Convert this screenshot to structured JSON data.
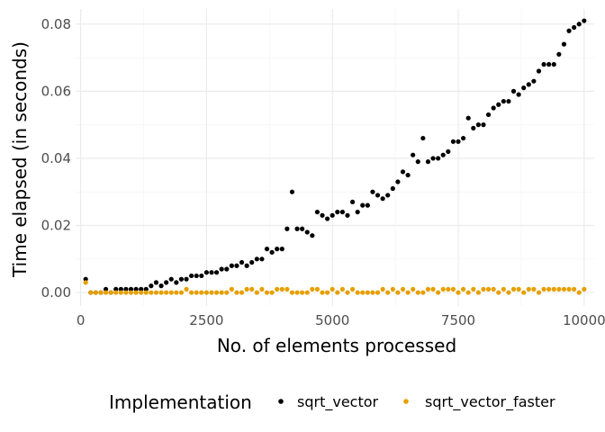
{
  "chart_data": {
    "type": "scatter",
    "title": "",
    "xlabel": "No. of elements processed",
    "ylabel": "Time elapsed (in seconds)",
    "xlim": [
      -100,
      10200
    ],
    "ylim": [
      -0.004,
      0.0845
    ],
    "x_ticks": [
      0,
      2500,
      5000,
      7500,
      10000
    ],
    "x_tick_labels": [
      "0",
      "2500",
      "5000",
      "7500",
      "10000"
    ],
    "y_ticks": [
      0.0,
      0.02,
      0.04,
      0.06,
      0.08
    ],
    "y_tick_labels": [
      "0.00",
      "0.02",
      "0.04",
      "0.06",
      "0.08"
    ],
    "grid": true,
    "legend": {
      "title": "Implementation",
      "placement": "bottom"
    },
    "series": [
      {
        "name": "sqrt_vector",
        "color": "#000000",
        "x": [
          100,
          200,
          300,
          400,
          500,
          600,
          700,
          800,
          900,
          1000,
          1100,
          1200,
          1300,
          1400,
          1500,
          1600,
          1700,
          1800,
          1900,
          2000,
          2100,
          2200,
          2300,
          2400,
          2500,
          2600,
          2700,
          2800,
          2900,
          3000,
          3100,
          3200,
          3300,
          3400,
          3500,
          3600,
          3700,
          3800,
          3900,
          4000,
          4100,
          4200,
          4300,
          4400,
          4500,
          4600,
          4700,
          4800,
          4900,
          5000,
          5100,
          5200,
          5300,
          5400,
          5500,
          5600,
          5700,
          5800,
          5900,
          6000,
          6100,
          6200,
          6300,
          6400,
          6500,
          6600,
          6700,
          6800,
          6900,
          7000,
          7100,
          7200,
          7300,
          7400,
          7500,
          7600,
          7700,
          7800,
          7900,
          8000,
          8100,
          8200,
          8300,
          8400,
          8500,
          8600,
          8700,
          8800,
          8900,
          9000,
          9100,
          9200,
          9300,
          9400,
          9500,
          9600,
          9700,
          9800,
          9900,
          10000
        ],
        "y": [
          0.004,
          0.0,
          0.0,
          0.0,
          0.001,
          0.0,
          0.001,
          0.001,
          0.001,
          0.001,
          0.001,
          0.001,
          0.001,
          0.002,
          0.003,
          0.002,
          0.003,
          0.004,
          0.003,
          0.004,
          0.004,
          0.005,
          0.005,
          0.005,
          0.006,
          0.006,
          0.006,
          0.007,
          0.007,
          0.008,
          0.008,
          0.009,
          0.008,
          0.009,
          0.01,
          0.01,
          0.013,
          0.012,
          0.013,
          0.013,
          0.019,
          0.03,
          0.019,
          0.019,
          0.018,
          0.017,
          0.024,
          0.023,
          0.022,
          0.023,
          0.024,
          0.024,
          0.023,
          0.027,
          0.024,
          0.026,
          0.026,
          0.03,
          0.029,
          0.028,
          0.029,
          0.031,
          0.033,
          0.036,
          0.035,
          0.041,
          0.039,
          0.046,
          0.039,
          0.04,
          0.04,
          0.041,
          0.042,
          0.045,
          0.045,
          0.046,
          0.052,
          0.049,
          0.05,
          0.05,
          0.053,
          0.055,
          0.056,
          0.057,
          0.057,
          0.06,
          0.059,
          0.061,
          0.062,
          0.063,
          0.066,
          0.068,
          0.068,
          0.068,
          0.071,
          0.074,
          0.078,
          0.079,
          0.08,
          0.081
        ]
      },
      {
        "name": "sqrt_vector_faster",
        "color": "#E69F00",
        "x": [
          100,
          200,
          300,
          400,
          500,
          600,
          700,
          800,
          900,
          1000,
          1100,
          1200,
          1300,
          1400,
          1500,
          1600,
          1700,
          1800,
          1900,
          2000,
          2100,
          2200,
          2300,
          2400,
          2500,
          2600,
          2700,
          2800,
          2900,
          3000,
          3100,
          3200,
          3300,
          3400,
          3500,
          3600,
          3700,
          3800,
          3900,
          4000,
          4100,
          4200,
          4300,
          4400,
          4500,
          4600,
          4700,
          4800,
          4900,
          5000,
          5100,
          5200,
          5300,
          5400,
          5500,
          5600,
          5700,
          5800,
          5900,
          6000,
          6100,
          6200,
          6300,
          6400,
          6500,
          6600,
          6700,
          6800,
          6900,
          7000,
          7100,
          7200,
          7300,
          7400,
          7500,
          7600,
          7700,
          7800,
          7900,
          8000,
          8100,
          8200,
          8300,
          8400,
          8500,
          8600,
          8700,
          8800,
          8900,
          9000,
          9100,
          9200,
          9300,
          9400,
          9500,
          9600,
          9700,
          9800,
          9900,
          10000
        ],
        "y": [
          0.003,
          0.0,
          0.0,
          0.0,
          0.0,
          0.0,
          0.0,
          0.0,
          0.0,
          0.0,
          0.0,
          0.0,
          0.0,
          0.0,
          0.0,
          0.0,
          0.0,
          0.0,
          0.0,
          0.0,
          0.001,
          0.0,
          0.0,
          0.0,
          0.0,
          0.0,
          0.0,
          0.0,
          0.0,
          0.001,
          0.0,
          0.0,
          0.001,
          0.001,
          0.0,
          0.001,
          0.0,
          0.0,
          0.001,
          0.001,
          0.001,
          0.0,
          0.0,
          0.0,
          0.0,
          0.001,
          0.001,
          0.0,
          0.0,
          0.001,
          0.0,
          0.001,
          0.0,
          0.001,
          0.0,
          0.0,
          0.0,
          0.0,
          0.0,
          0.001,
          0.0,
          0.001,
          0.0,
          0.001,
          0.0,
          0.001,
          0.0,
          0.0,
          0.001,
          0.001,
          0.0,
          0.001,
          0.001,
          0.001,
          0.0,
          0.001,
          0.0,
          0.001,
          0.0,
          0.001,
          0.001,
          0.001,
          0.0,
          0.001,
          0.0,
          0.001,
          0.001,
          0.0,
          0.001,
          0.001,
          0.0,
          0.001,
          0.001,
          0.001,
          0.001,
          0.001,
          0.001,
          0.001,
          0.0,
          0.001
        ]
      }
    ]
  }
}
